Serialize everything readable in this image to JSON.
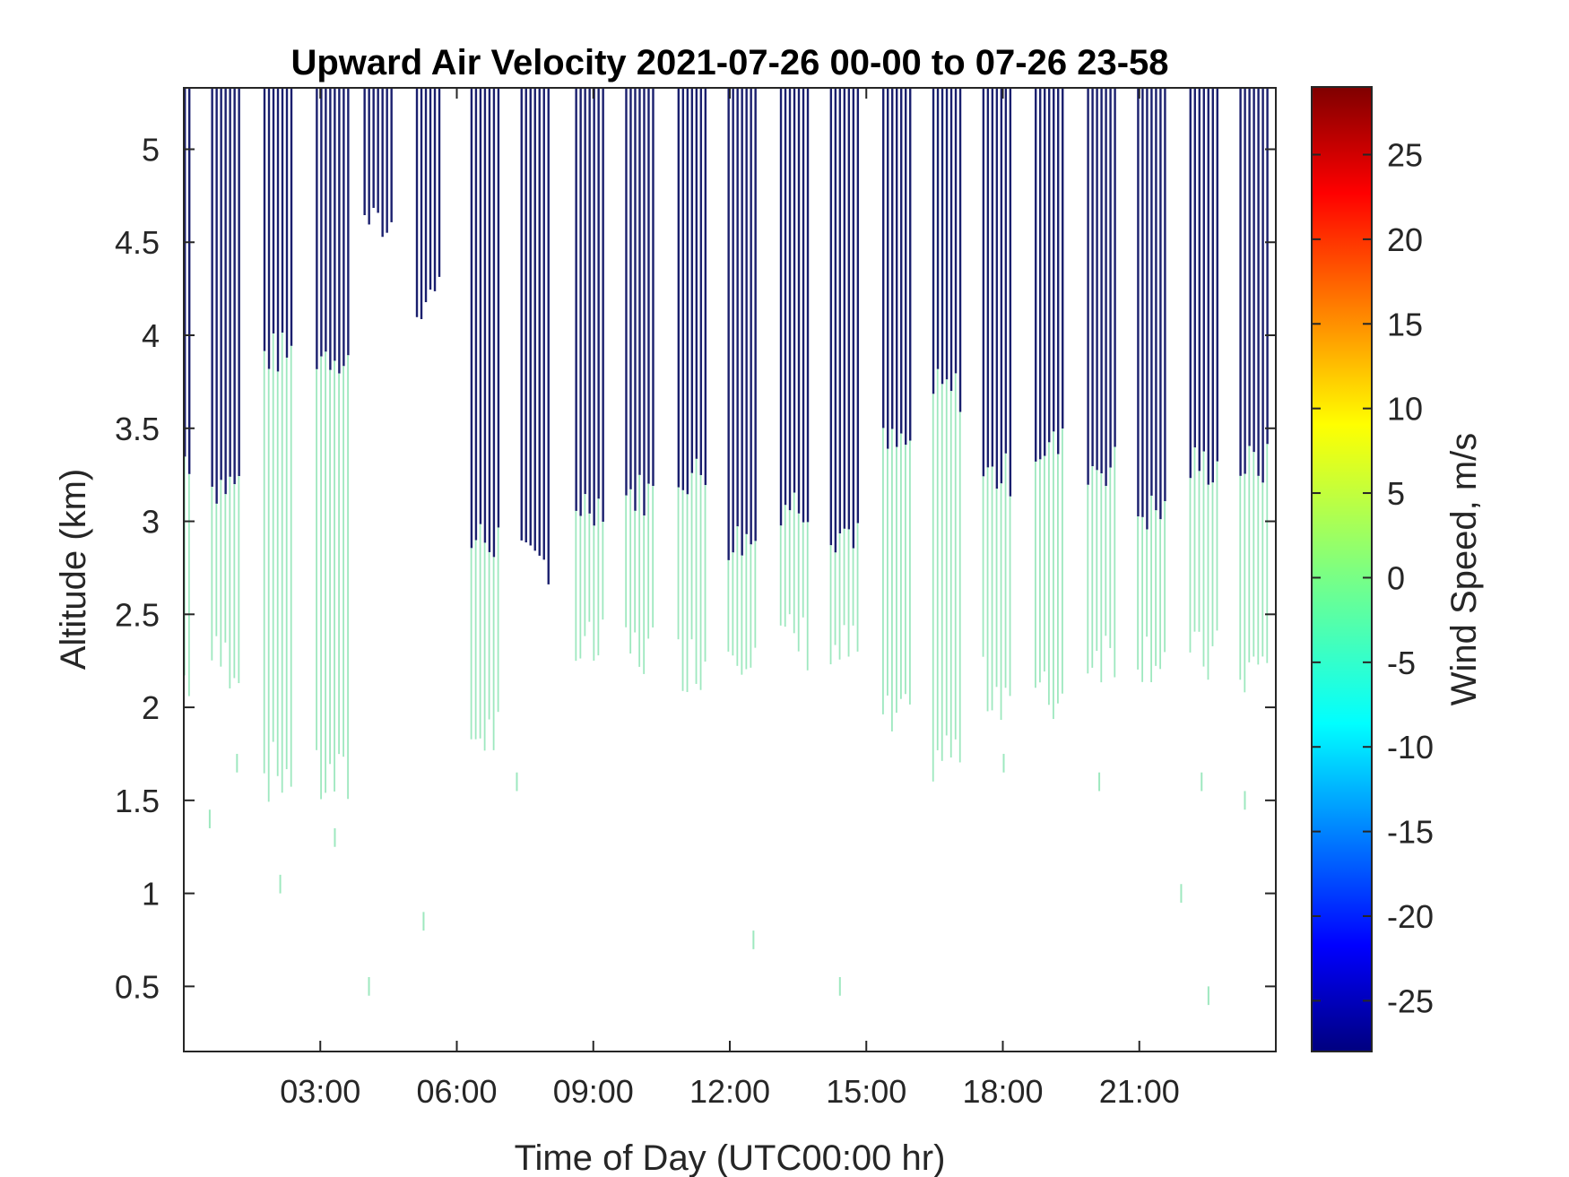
{
  "chart_data": {
    "type": "heatmap",
    "title": "Upward Air Velocity 2021-07-26 00-00 to 07-26 23-58",
    "xlabel": "Time of Day (UTC00:00 hr)",
    "ylabel": "Altitude (km)",
    "xlim_hours": [
      0,
      24
    ],
    "ylim_km": [
      0.15,
      5.33
    ],
    "x_ticks": [
      {
        "value": 3,
        "label": "03:00"
      },
      {
        "value": 6,
        "label": "06:00"
      },
      {
        "value": 9,
        "label": "09:00"
      },
      {
        "value": 12,
        "label": "12:00"
      },
      {
        "value": 15,
        "label": "15:00"
      },
      {
        "value": 18,
        "label": "18:00"
      },
      {
        "value": 21,
        "label": "21:00"
      }
    ],
    "y_ticks": [
      {
        "value": 0.5,
        "label": "0.5"
      },
      {
        "value": 1,
        "label": "1"
      },
      {
        "value": 1.5,
        "label": "1.5"
      },
      {
        "value": 2,
        "label": "2"
      },
      {
        "value": 2.5,
        "label": "2.5"
      },
      {
        "value": 3,
        "label": "3"
      },
      {
        "value": 3.5,
        "label": "3.5"
      },
      {
        "value": 4,
        "label": "4"
      },
      {
        "value": 4.5,
        "label": "4.5"
      },
      {
        "value": 5,
        "label": "5"
      }
    ],
    "colorbar": {
      "label": "Wind Speed, m/s",
      "colormap": "jet",
      "range": [
        -28,
        29
      ],
      "ticks": [
        {
          "value": 25,
          "label": "25"
        },
        {
          "value": 20,
          "label": "20"
        },
        {
          "value": 15,
          "label": "15"
        },
        {
          "value": 10,
          "label": "10"
        },
        {
          "value": 5,
          "label": "5"
        },
        {
          "value": 0,
          "label": "0"
        },
        {
          "value": -5,
          "label": "-5"
        },
        {
          "value": -10,
          "label": "-10"
        },
        {
          "value": -15,
          "label": "-15"
        },
        {
          "value": -20,
          "label": "-20"
        },
        {
          "value": -25,
          "label": "-25"
        }
      ]
    },
    "colors": {
      "upper_layer": "#1a1f6e",
      "lower_layer": "#9ee8bf"
    },
    "profile_blocks": [
      {
        "start_h": 0.0,
        "end_h": 0.1,
        "upper_base_km": 3.35,
        "lower_base_km": 2.15
      },
      {
        "start_h": 0.6,
        "end_h": 1.2,
        "upper_base_km": 3.2,
        "lower_base_km": 2.25
      },
      {
        "start_h": 1.75,
        "end_h": 2.35,
        "upper_base_km": 3.9,
        "lower_base_km": 1.65
      },
      {
        "start_h": 2.9,
        "end_h": 3.6,
        "upper_base_km": 3.9,
        "lower_base_km": 1.6
      },
      {
        "start_h": 3.95,
        "end_h": 4.6,
        "upper_base_km": 4.62,
        "lower_base_km": null
      },
      {
        "start_h": 5.1,
        "end_h": 5.6,
        "upper_base_km": 4.2,
        "lower_base_km": null
      },
      {
        "start_h": 6.3,
        "end_h": 6.9,
        "upper_base_km": 2.9,
        "lower_base_km": 1.85
      },
      {
        "start_h": 7.4,
        "end_h": 8.0,
        "upper_base_km": 2.78,
        "lower_base_km": null
      },
      {
        "start_h": 8.6,
        "end_h": 9.2,
        "upper_base_km": 3.1,
        "lower_base_km": 2.3
      },
      {
        "start_h": 9.7,
        "end_h": 10.3,
        "upper_base_km": 3.15,
        "lower_base_km": 2.3
      },
      {
        "start_h": 10.85,
        "end_h": 11.45,
        "upper_base_km": 3.25,
        "lower_base_km": 2.25
      },
      {
        "start_h": 11.95,
        "end_h": 12.55,
        "upper_base_km": 2.9,
        "lower_base_km": 2.35
      },
      {
        "start_h": 13.1,
        "end_h": 13.7,
        "upper_base_km": 3.1,
        "lower_base_km": 2.35
      },
      {
        "start_h": 14.2,
        "end_h": 14.8,
        "upper_base_km": 2.95,
        "lower_base_km": 2.3
      },
      {
        "start_h": 15.35,
        "end_h": 15.95,
        "upper_base_km": 3.4,
        "lower_base_km": 1.9
      },
      {
        "start_h": 16.45,
        "end_h": 17.05,
        "upper_base_km": 3.7,
        "lower_base_km": 1.75
      },
      {
        "start_h": 17.55,
        "end_h": 18.15,
        "upper_base_km": 3.25,
        "lower_base_km": 2.1
      },
      {
        "start_h": 18.7,
        "end_h": 19.3,
        "upper_base_km": 3.4,
        "lower_base_km": 2.05
      },
      {
        "start_h": 19.85,
        "end_h": 20.45,
        "upper_base_km": 3.3,
        "lower_base_km": 2.3
      },
      {
        "start_h": 20.95,
        "end_h": 21.55,
        "upper_base_km": 3.05,
        "lower_base_km": 2.3
      },
      {
        "start_h": 22.1,
        "end_h": 22.7,
        "upper_base_km": 3.3,
        "lower_base_km": 2.25
      },
      {
        "start_h": 23.2,
        "end_h": 23.8,
        "upper_base_km": 3.3,
        "lower_base_km": 2.2
      }
    ],
    "isolated_values": [
      {
        "t_h": 0.55,
        "alt_km": 1.4
      },
      {
        "t_h": 1.15,
        "alt_km": 1.7
      },
      {
        "t_h": 2.1,
        "alt_km": 1.05
      },
      {
        "t_h": 3.3,
        "alt_km": 1.3
      },
      {
        "t_h": 4.05,
        "alt_km": 0.5
      },
      {
        "t_h": 5.25,
        "alt_km": 0.85
      },
      {
        "t_h": 7.3,
        "alt_km": 1.6
      },
      {
        "t_h": 12.5,
        "alt_km": 0.75
      },
      {
        "t_h": 14.4,
        "alt_km": 0.5
      },
      {
        "t_h": 18.0,
        "alt_km": 1.7
      },
      {
        "t_h": 20.1,
        "alt_km": 1.6
      },
      {
        "t_h": 21.9,
        "alt_km": 1.0
      },
      {
        "t_h": 22.5,
        "alt_km": 0.45
      },
      {
        "t_h": 22.35,
        "alt_km": 1.6
      },
      {
        "t_h": 23.3,
        "alt_km": 1.5
      }
    ]
  }
}
